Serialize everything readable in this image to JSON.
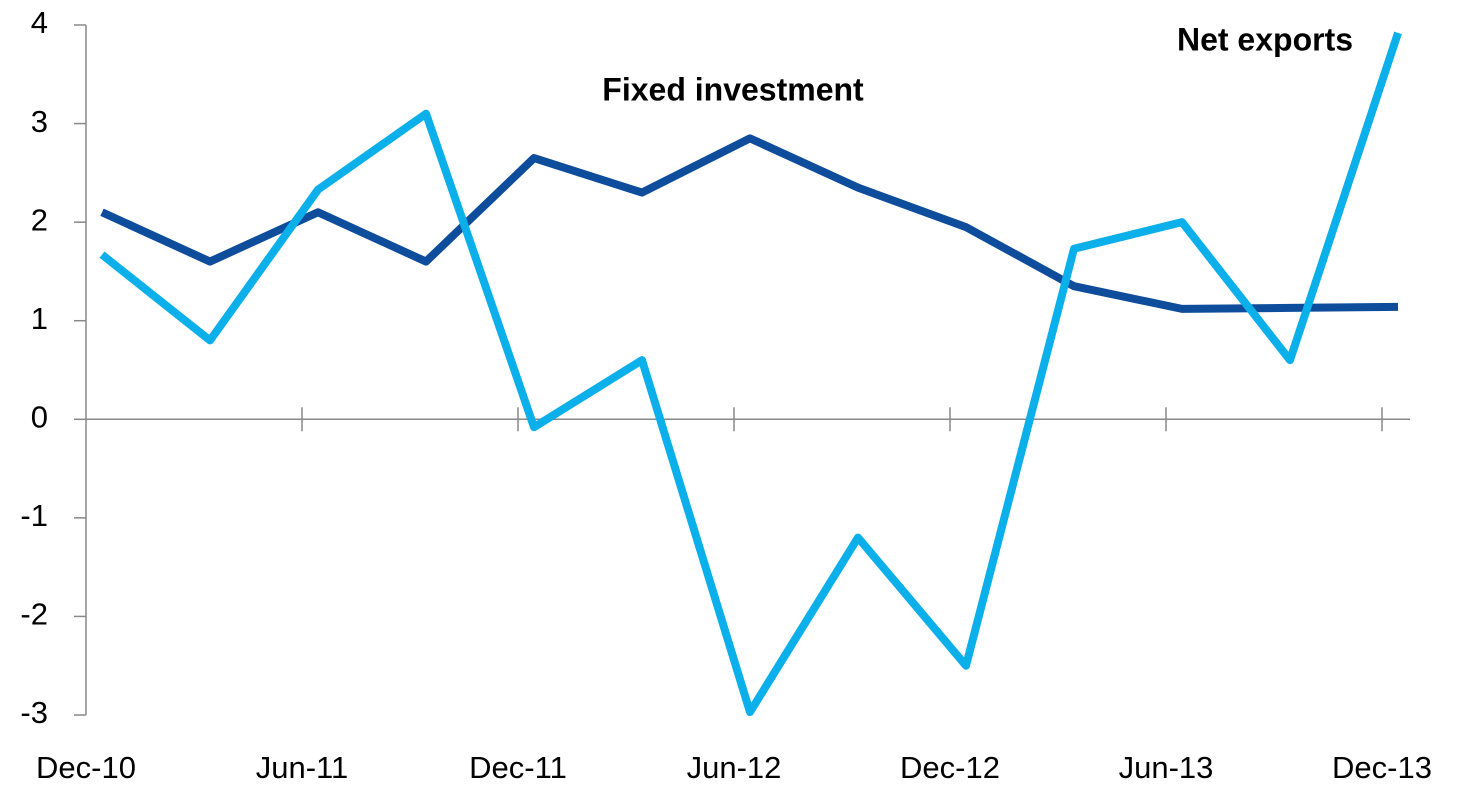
{
  "chart_data": {
    "type": "line",
    "categories": [
      "Dec-10",
      null,
      "Jun-11",
      null,
      "Dec-11",
      null,
      "Jun-12",
      null,
      "Dec-12",
      null,
      "Jun-13",
      null,
      "Dec-13"
    ],
    "series": [
      {
        "name": "Fixed investment",
        "color": "#0e4c9c",
        "values": [
          2.1,
          1.6,
          2.1,
          1.6,
          2.65,
          2.3,
          2.85,
          2.35,
          1.95,
          1.35,
          1.12,
          1.13,
          1.14
        ]
      },
      {
        "name": "Net exports",
        "color": "#0bb0ea",
        "values": [
          1.67,
          0.8,
          2.33,
          3.1,
          -0.08,
          0.6,
          -2.97,
          -1.2,
          -2.5,
          1.73,
          2.0,
          0.6,
          3.92
        ]
      }
    ],
    "ylim": [
      -3,
      4
    ],
    "yticks": [
      -3,
      -2,
      -1,
      0,
      1,
      2,
      3,
      4
    ]
  }
}
